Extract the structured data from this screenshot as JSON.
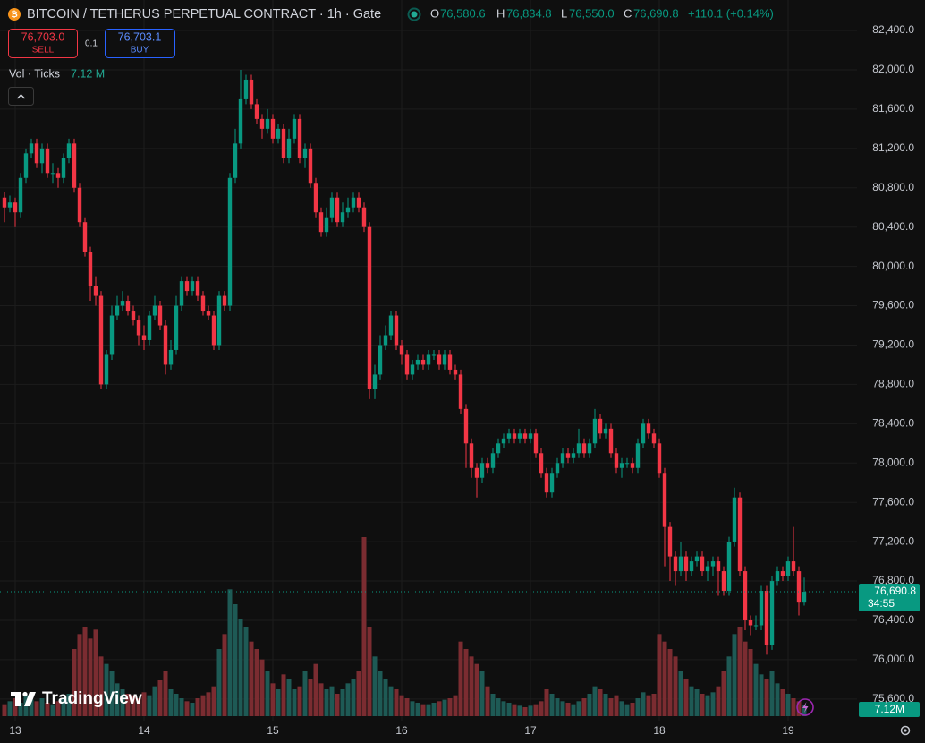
{
  "header": {
    "title": "BITCOIN / TETHERUS PERPETUAL CONTRACT · 1h · Gate",
    "ohlc": [
      {
        "key": "O",
        "value": "76,580.6"
      },
      {
        "key": "H",
        "value": "76,834.8"
      },
      {
        "key": "L",
        "value": "76,550.0"
      },
      {
        "key": "C",
        "value": "76,690.8"
      }
    ],
    "change": "+110.1 (+0.14%)"
  },
  "trade": {
    "sell_price": "76,703.0",
    "sell_label": "SELL",
    "spread": "0.1",
    "buy_price": "76,703.1",
    "buy_label": "BUY"
  },
  "indicator": {
    "name": "Vol · Ticks",
    "value": "7.12 M"
  },
  "branding": "TradingView",
  "chart_data": {
    "type": "candlestick",
    "categories": [
      null,
      null,
      "13",
      null,
      null,
      null,
      null,
      null,
      null,
      null,
      null,
      null,
      null,
      null,
      null,
      null,
      null,
      null,
      null,
      null,
      null,
      null,
      null,
      null,
      null,
      null,
      "14",
      null,
      null,
      null,
      null,
      null,
      null,
      null,
      null,
      null,
      null,
      null,
      null,
      null,
      null,
      null,
      null,
      null,
      null,
      null,
      null,
      null,
      null,
      null,
      "15",
      null,
      null,
      null,
      null,
      null,
      null,
      null,
      null,
      null,
      null,
      null,
      null,
      null,
      null,
      null,
      null,
      null,
      null,
      null,
      null,
      null,
      null,
      null,
      "16",
      null,
      null,
      null,
      null,
      null,
      null,
      null,
      null,
      null,
      null,
      null,
      null,
      null,
      null,
      null,
      null,
      null,
      null,
      null,
      null,
      null,
      null,
      null,
      "17",
      null,
      null,
      null,
      null,
      null,
      null,
      null,
      null,
      null,
      null,
      null,
      null,
      null,
      null,
      null,
      null,
      null,
      null,
      null,
      null,
      null,
      null,
      null,
      "18",
      null,
      null,
      null,
      null,
      null,
      null,
      null,
      null,
      null,
      null,
      null,
      null,
      null,
      null,
      null,
      null,
      null,
      null,
      null,
      null,
      null,
      null,
      null,
      "19",
      null,
      null,
      null
    ],
    "open": [
      80700,
      80600,
      80650,
      80550,
      80900,
      81150,
      81250,
      81050,
      81200,
      80950,
      80950,
      80900,
      81100,
      81250,
      80800,
      80450,
      80150,
      79800,
      79700,
      78800,
      79100,
      79500,
      79600,
      79650,
      79550,
      79450,
      79300,
      79250,
      79500,
      79600,
      79400,
      79000,
      79150,
      79600,
      79850,
      79750,
      79850,
      79700,
      79550,
      79500,
      79200,
      79700,
      79600,
      80900,
      81250,
      81700,
      81900,
      81650,
      81500,
      81400,
      81500,
      81300,
      81400,
      81100,
      81300,
      81500,
      81100,
      81200,
      80850,
      80550,
      80350,
      80500,
      80700,
      80450,
      80550,
      80600,
      80700,
      80600,
      80400,
      78750,
      78900,
      79200,
      79300,
      79500,
      79200,
      79100,
      78900,
      79000,
      79050,
      79000,
      79100,
      79100,
      79000,
      79100,
      78950,
      78900,
      78550,
      78200,
      77950,
      77850,
      78000,
      77950,
      78100,
      78200,
      78250,
      78300,
      78250,
      78300,
      78250,
      78300,
      78100,
      77900,
      77700,
      77900,
      78000,
      78100,
      78050,
      78100,
      78200,
      78100,
      78200,
      78450,
      78300,
      78350,
      78100,
      77950,
      78000,
      78000,
      77950,
      78200,
      78400,
      78300,
      78200,
      77900,
      77350,
      77050,
      76900,
      77050,
      76900,
      77000,
      77050,
      76900,
      76950,
      77000,
      76900,
      76700,
      77200,
      77650,
      76900,
      76400,
      76350,
      76350,
      76700,
      76150,
      76800,
      76900,
      76850,
      77000,
      76900,
      76580.6
    ],
    "high": [
      80760,
      80720,
      80700,
      80950,
      81200,
      81300,
      81300,
      81250,
      81250,
      81050,
      81000,
      81150,
      81300,
      81300,
      80850,
      80500,
      80200,
      79900,
      79750,
      79150,
      79600,
      79700,
      79750,
      79700,
      79600,
      79500,
      79400,
      79550,
      79700,
      79650,
      79450,
      79250,
      79700,
      79900,
      79900,
      79900,
      79900,
      79750,
      79600,
      79550,
      79750,
      79750,
      80950,
      81400,
      82000,
      81950,
      81950,
      81700,
      81550,
      81600,
      81550,
      81450,
      81450,
      81400,
      81550,
      81550,
      81250,
      81250,
      80900,
      80600,
      80600,
      80750,
      80750,
      80650,
      80700,
      80750,
      80750,
      80650,
      80450,
      79000,
      79300,
      79400,
      79550,
      79550,
      79250,
      79150,
      79050,
      79100,
      79100,
      79150,
      79150,
      79150,
      79150,
      79150,
      79000,
      78950,
      78600,
      78250,
      78000,
      78050,
      78050,
      78150,
      78250,
      78300,
      78350,
      78350,
      78350,
      78350,
      78350,
      78350,
      78150,
      77950,
      77950,
      78050,
      78150,
      78150,
      78150,
      78350,
      78250,
      78250,
      78550,
      78500,
      78400,
      78400,
      78150,
      78050,
      78050,
      78050,
      78250,
      78450,
      78450,
      78350,
      78250,
      77950,
      77400,
      77100,
      77200,
      77100,
      77050,
      77100,
      77100,
      77000,
      77050,
      77050,
      76950,
      77250,
      77750,
      77700,
      76950,
      76450,
      76450,
      76750,
      76750,
      76850,
      76950,
      76950,
      77050,
      77350,
      76950,
      76834.8
    ],
    "low": [
      80450,
      80550,
      80400,
      80500,
      80850,
      81100,
      81000,
      80950,
      80900,
      80850,
      80800,
      80850,
      81050,
      80750,
      80400,
      80100,
      79650,
      79600,
      78750,
      78750,
      79050,
      79450,
      79550,
      79500,
      79400,
      79200,
      79150,
      79200,
      79450,
      79350,
      78900,
      78950,
      79100,
      79550,
      79700,
      79700,
      79650,
      79500,
      79450,
      79150,
      79150,
      79550,
      79550,
      80850,
      81200,
      81650,
      81600,
      81450,
      81300,
      81350,
      81250,
      81250,
      81050,
      81050,
      81250,
      81050,
      81000,
      80800,
      80500,
      80300,
      80300,
      80450,
      80400,
      80400,
      80500,
      80550,
      80550,
      80350,
      78650,
      78650,
      78850,
      79150,
      79250,
      79150,
      79000,
      78850,
      78850,
      78950,
      78950,
      78950,
      79050,
      78950,
      78950,
      78900,
      78850,
      78500,
      77950,
      77850,
      77650,
      77800,
      77900,
      77900,
      78050,
      78150,
      78200,
      78200,
      78200,
      78200,
      78200,
      78050,
      77850,
      77650,
      77650,
      77850,
      77950,
      78000,
      78000,
      78050,
      78050,
      78050,
      78150,
      78250,
      78250,
      78050,
      77900,
      77850,
      77950,
      77900,
      77900,
      78150,
      78250,
      78150,
      77850,
      76950,
      76800,
      76750,
      76850,
      76800,
      76850,
      76950,
      76850,
      76800,
      76850,
      76650,
      76650,
      76650,
      77150,
      76850,
      76300,
      76250,
      76300,
      76300,
      76050,
      76100,
      76750,
      76800,
      76800,
      76850,
      76450,
      76550
    ],
    "close": [
      80600,
      80650,
      80550,
      80900,
      81150,
      81250,
      81050,
      81200,
      80950,
      80950,
      80900,
      81100,
      81250,
      80800,
      80450,
      80150,
      79800,
      79700,
      78800,
      79100,
      79500,
      79600,
      79650,
      79550,
      79450,
      79300,
      79250,
      79500,
      79600,
      79400,
      79000,
      79150,
      79600,
      79850,
      79750,
      79850,
      79700,
      79550,
      79500,
      79200,
      79700,
      79600,
      80900,
      81250,
      81700,
      81900,
      81650,
      81500,
      81400,
      81500,
      81300,
      81400,
      81100,
      81300,
      81500,
      81100,
      81200,
      80850,
      80550,
      80350,
      80500,
      80700,
      80450,
      80550,
      80600,
      80700,
      80600,
      80400,
      78750,
      78900,
      79200,
      79300,
      79500,
      79200,
      79100,
      78900,
      79000,
      79050,
      79000,
      79100,
      79100,
      79000,
      79100,
      78950,
      78900,
      78550,
      78200,
      77950,
      77850,
      78000,
      77950,
      78100,
      78200,
      78250,
      78300,
      78250,
      78300,
      78250,
      78300,
      78100,
      77900,
      77700,
      77900,
      78000,
      78100,
      78050,
      78100,
      78200,
      78100,
      78200,
      78450,
      78300,
      78350,
      78100,
      77950,
      78000,
      78000,
      77950,
      78200,
      78400,
      78300,
      78200,
      77900,
      77350,
      77050,
      76900,
      77050,
      76900,
      77000,
      77050,
      76900,
      76950,
      77000,
      76900,
      76700,
      77200,
      77650,
      76900,
      76400,
      76350,
      76350,
      76700,
      76150,
      76800,
      76900,
      76850,
      77000,
      76900,
      76580.6,
      76690.8
    ],
    "volume": [
      8,
      10,
      12,
      9,
      14,
      11,
      10,
      12,
      9,
      8,
      10,
      12,
      15,
      45,
      55,
      60,
      52,
      58,
      40,
      35,
      30,
      22,
      18,
      15,
      14,
      12,
      16,
      14,
      20,
      24,
      30,
      18,
      15,
      12,
      10,
      9,
      12,
      14,
      16,
      20,
      45,
      55,
      85,
      75,
      65,
      60,
      50,
      45,
      38,
      30,
      22,
      18,
      28,
      25,
      18,
      20,
      30,
      25,
      35,
      22,
      18,
      20,
      15,
      18,
      22,
      25,
      30,
      120,
      60,
      40,
      30,
      25,
      20,
      18,
      14,
      12,
      10,
      9,
      8,
      8,
      9,
      10,
      11,
      12,
      14,
      50,
      45,
      40,
      35,
      30,
      20,
      15,
      12,
      10,
      9,
      8,
      7,
      6,
      7,
      8,
      10,
      18,
      15,
      12,
      10,
      9,
      8,
      10,
      12,
      15,
      20,
      18,
      15,
      12,
      14,
      10,
      8,
      9,
      12,
      16,
      14,
      15,
      55,
      50,
      45,
      40,
      30,
      25,
      20,
      18,
      15,
      14,
      16,
      20,
      30,
      40,
      55,
      60,
      50,
      45,
      35,
      28,
      25,
      30,
      22,
      18,
      15,
      12,
      10,
      7.12
    ],
    "volume_label": "7.12M",
    "last_price_label": "76,690.8",
    "countdown": "34:55",
    "ylim": [
      75380,
      82710
    ],
    "yticks": [
      {
        "value": 82400,
        "label": "82,400.0"
      },
      {
        "value": 82000,
        "label": "82,000.0"
      },
      {
        "value": 81600,
        "label": "81,600.0"
      },
      {
        "value": 81200,
        "label": "81,200.0"
      },
      {
        "value": 80800,
        "label": "80,800.0"
      },
      {
        "value": 80400,
        "label": "80,400.0"
      },
      {
        "value": 80000,
        "label": "80,000.0"
      },
      {
        "value": 79600,
        "label": "79,600.0"
      },
      {
        "value": 79200,
        "label": "79,200.0"
      },
      {
        "value": 78800,
        "label": "78,800.0"
      },
      {
        "value": 78400,
        "label": "78,400.0"
      },
      {
        "value": 78000,
        "label": "78,000.0"
      },
      {
        "value": 77600,
        "label": "77,600.0"
      },
      {
        "value": 77200,
        "label": "77,200.0"
      },
      {
        "value": 76800,
        "label": "76,800.0"
      },
      {
        "value": 76400,
        "label": "76,400.0"
      },
      {
        "value": 76000,
        "label": "76,000.0"
      },
      {
        "value": 75600,
        "label": "75,600.0"
      }
    ],
    "grid": true,
    "up_color": "#089981",
    "down_color": "#f23645",
    "volume_up_color": "#1e5a55",
    "volume_down_color": "#7b2c31"
  }
}
